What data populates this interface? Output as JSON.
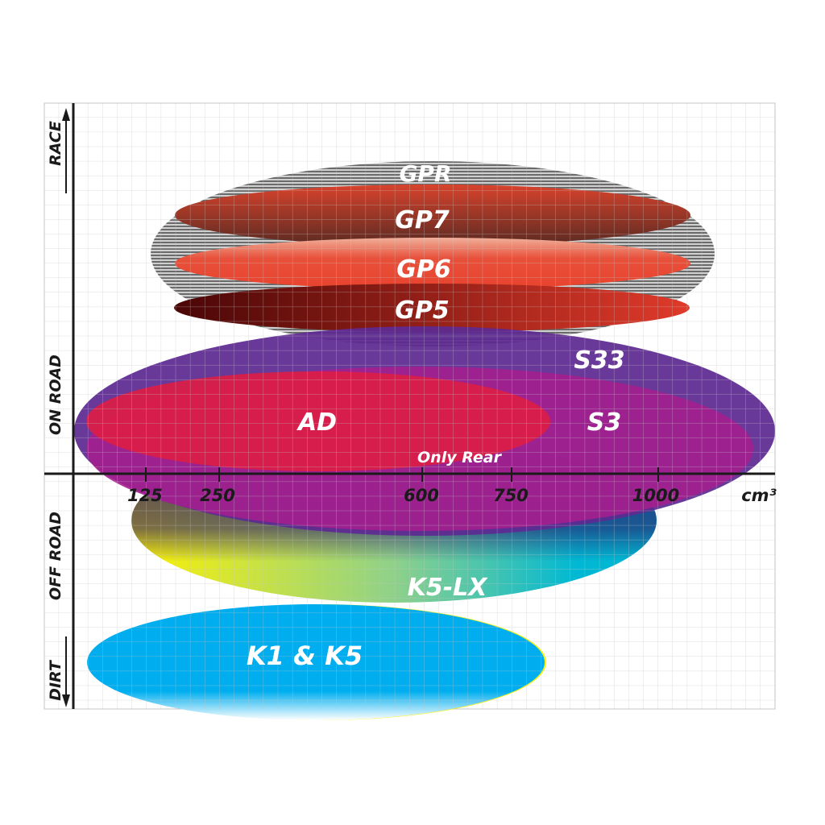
{
  "axis": {
    "x_unit": "cm³",
    "x_ticks": [
      "125",
      "250",
      "600",
      "750",
      "1000"
    ],
    "y_labels": {
      "race": "RACE",
      "on_road": "ON ROAD",
      "off_road": "OFF ROAD",
      "dirt": "DIRT"
    }
  },
  "products": {
    "gpr": {
      "label": "GPR",
      "color": "#9a9a9a"
    },
    "gp7": {
      "label": "GP7",
      "color": "#a83a28"
    },
    "gp6": {
      "label": "GP6",
      "color": "#e8432e"
    },
    "gp5": {
      "label": "GP5",
      "color": "#7a0f0f"
    },
    "s33": {
      "label": "S33",
      "color": "#5e2a92"
    },
    "s3": {
      "label": "S3",
      "color": "#a3208f"
    },
    "ad": {
      "label": "AD",
      "color": "#d91e48"
    },
    "only_rear": {
      "label": "Only Rear"
    },
    "k5lx": {
      "label": "K5-LX",
      "color": "#1bb8c8"
    },
    "k1k5": {
      "label": "K1 & K5",
      "color": "#00aeef"
    }
  }
}
